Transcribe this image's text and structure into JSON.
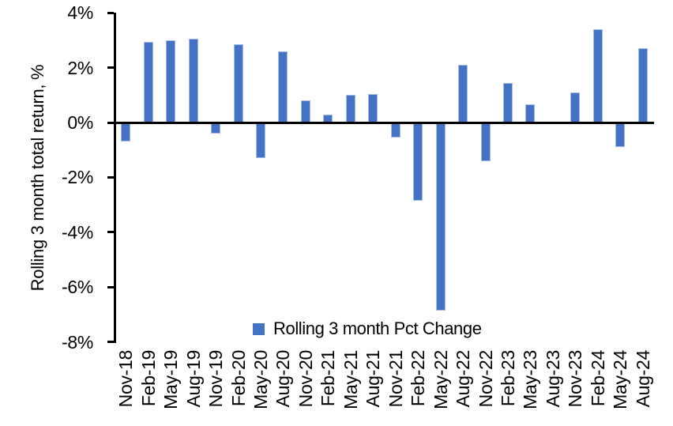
{
  "chart_data": {
    "type": "bar",
    "title": "",
    "xlabel": "",
    "ylabel": "Rolling 3 month total return, %",
    "categories": [
      "Nov-18",
      "Feb-19",
      "May-19",
      "Aug-19",
      "Nov-19",
      "Feb-20",
      "May-20",
      "Aug-20",
      "Nov-20",
      "Feb-21",
      "May-21",
      "Aug-21",
      "Nov-21",
      "Feb-22",
      "May-22",
      "Aug-22",
      "Nov-22",
      "Feb-23",
      "May-23",
      "Aug-23",
      "Nov-23",
      "Feb-24",
      "May-24",
      "Aug-24"
    ],
    "values": [
      -0.7,
      2.95,
      3.0,
      3.05,
      -0.4,
      2.85,
      -1.3,
      2.6,
      0.8,
      0.3,
      1.0,
      1.05,
      -0.55,
      -2.85,
      -6.85,
      2.1,
      -1.4,
      1.45,
      0.65,
      0.0,
      1.1,
      3.4,
      -0.9,
      2.7
    ],
    "ylim": [
      -8,
      4
    ],
    "yticks": [
      4,
      2,
      0,
      -2,
      -4,
      -6,
      -8
    ],
    "ytick_labels": [
      "4%",
      "2%",
      "0%",
      "-2%",
      "-4%",
      "-6%",
      "-8%"
    ],
    "grid": false,
    "legend": {
      "label": "Rolling 3 month Pct Change",
      "position": "bottom-inside"
    },
    "colors": {
      "bar_fill": "#4472C4",
      "bar_edge": "#A3BBE4",
      "axis": "#000000",
      "text": "#000000",
      "background": "#FFFFFF"
    }
  }
}
